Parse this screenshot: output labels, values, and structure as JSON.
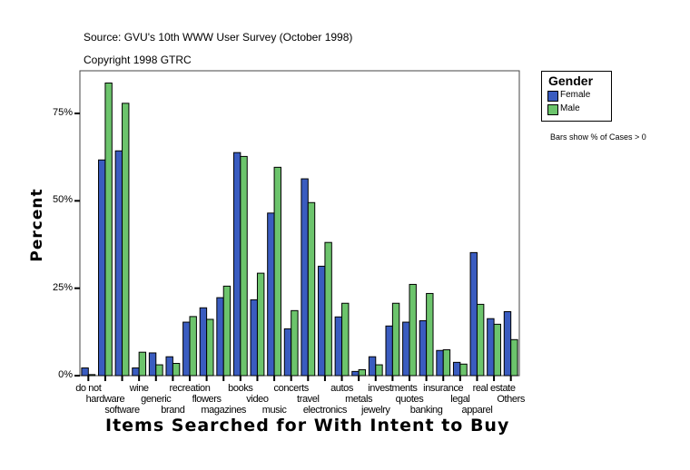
{
  "header": {
    "source": "Source: GVU's 10th WWW User Survey (October 1998)",
    "copyright": "Copyright 1998 GTRC"
  },
  "note": "Bars show % of Cases > 0",
  "chart_data": {
    "type": "bar",
    "xlabel": "Items Searched for With Intent to Buy",
    "ylabel": "Percent",
    "ylim": [
      0,
      87.5
    ],
    "yticks": [
      0,
      25,
      50,
      75
    ],
    "ytick_labels": [
      "0%",
      "25%",
      "50%",
      "75%"
    ],
    "legend": {
      "title": "Gender",
      "placement": "right"
    },
    "categories": [
      "do not",
      "hardware",
      "software",
      "wine",
      "generic",
      "brand",
      "recreation",
      "flowers",
      "magazines",
      "books",
      "video",
      "music",
      "concerts",
      "travel",
      "electronics",
      "autos",
      "metals",
      "jewelry",
      "investments",
      "quotes",
      "banking",
      "insurance",
      "legal",
      "apparel",
      "real estate",
      "Others"
    ],
    "series": [
      {
        "name": "Female",
        "color": "#3a5cc0",
        "values": [
          2.2,
          61.7,
          64.3,
          2.2,
          6.5,
          5.4,
          15.3,
          19.4,
          22.3,
          63.8,
          21.7,
          46.5,
          13.4,
          56.3,
          31.3,
          16.8,
          1.2,
          5.4,
          14.2,
          15.3,
          15.7,
          7.2,
          3.8,
          35.2,
          16.3,
          18.3
        ]
      },
      {
        "name": "Male",
        "color": "#6cc46c",
        "values": [
          0.3,
          83.7,
          77.9,
          6.7,
          3.1,
          3.5,
          16.9,
          16.1,
          25.6,
          62.7,
          29.3,
          59.6,
          18.6,
          49.5,
          38.1,
          20.7,
          1.7,
          3.1,
          20.7,
          26.1,
          23.5,
          7.4,
          3.3,
          20.4,
          14.7,
          10.3
        ]
      }
    ]
  }
}
